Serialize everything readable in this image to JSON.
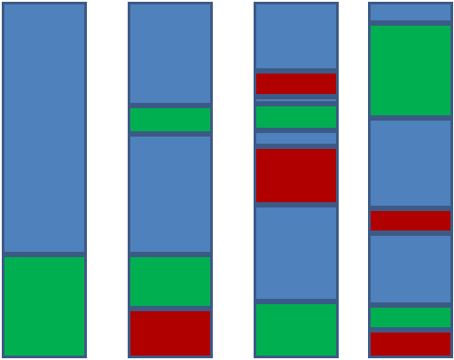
{
  "colors": {
    "blue": "#4f81bd",
    "green": "#00b050",
    "red": "#b00000",
    "border": "#3c5a86",
    "background": "#ffffff"
  },
  "columns": [
    {
      "segments": [
        "blue",
        "green"
      ],
      "fractions": [
        0.71,
        0.29
      ]
    },
    {
      "segments": [
        "blue",
        "green",
        "blue",
        "green",
        "red"
      ],
      "fractions": [
        0.29,
        0.08,
        0.34,
        0.15,
        0.14
      ]
    },
    {
      "segments": [
        "blue",
        "red",
        "blue",
        "green",
        "blue",
        "red",
        "blue",
        "green"
      ],
      "fractions": [
        0.195,
        0.07,
        0.02,
        0.075,
        0.045,
        0.165,
        0.27,
        0.16
      ]
    },
    {
      "segments": [
        "blue",
        "green",
        "blue",
        "red",
        "blue",
        "green",
        "red"
      ],
      "fractions": [
        0.06,
        0.265,
        0.255,
        0.07,
        0.2,
        0.07,
        0.08
      ]
    }
  ]
}
